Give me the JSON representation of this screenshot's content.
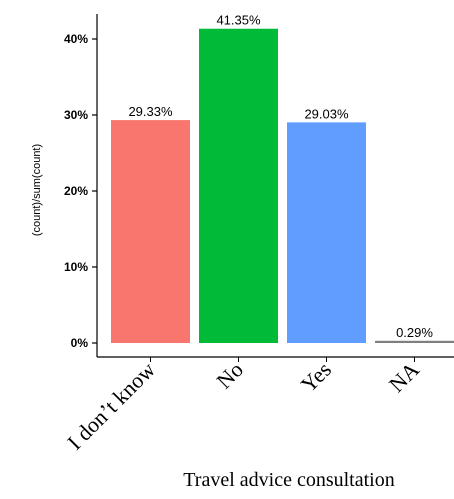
{
  "chart_data": {
    "type": "bar",
    "categories": [
      "I don’t know",
      "No",
      "Yes",
      "NA"
    ],
    "values": [
      29.33,
      41.35,
      29.03,
      0.29
    ],
    "data_labels": [
      "29.33%",
      "41.35%",
      "29.03%",
      "0.29%"
    ],
    "colors": [
      "#F8766D",
      "#00BA38",
      "#619CFF",
      "#7F7F7F"
    ],
    "ylim": [
      0,
      43
    ],
    "yticks": [
      0,
      10,
      20,
      30,
      40
    ],
    "ytick_labels": [
      "0%",
      "10%",
      "20%",
      "30%",
      "40%"
    ],
    "ylabel": "(count)/sum(count)",
    "xlabel": "Travel advice consultation",
    "grid": false,
    "legend": "none"
  }
}
